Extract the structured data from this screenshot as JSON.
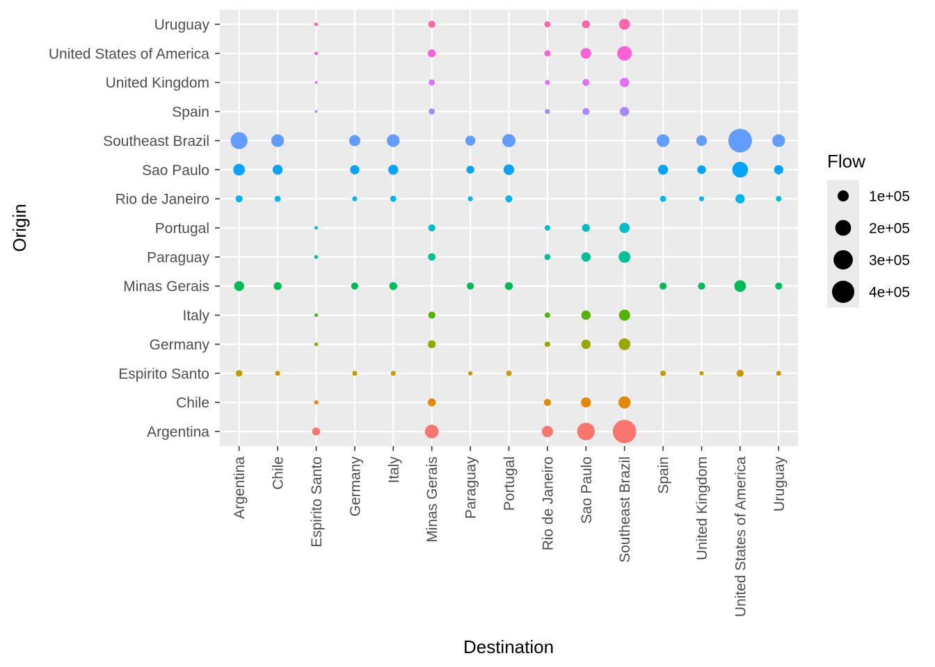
{
  "chart_data": {
    "type": "scatter",
    "xlabel": "Destination",
    "ylabel": "Origin",
    "x_categories": [
      "Argentina",
      "Chile",
      "Espirito Santo",
      "Germany",
      "Italy",
      "Minas Gerais",
      "Paraguay",
      "Portugal",
      "Rio de Janeiro",
      "Sao Paulo",
      "Southeast Brazil",
      "Spain",
      "United Kingdom",
      "United States of America",
      "Uruguay"
    ],
    "y_categories": [
      "Argentina",
      "Chile",
      "Espirito Santo",
      "Germany",
      "Italy",
      "Minas Gerais",
      "Paraguay",
      "Portugal",
      "Rio de Janeiro",
      "Sao Paulo",
      "Southeast Brazil",
      "Spain",
      "United Kingdom",
      "United States of America",
      "Uruguay"
    ],
    "size_legend": {
      "title": "Flow",
      "breaks": [
        100000,
        200000,
        300000,
        400000
      ],
      "labels": [
        "1e+05",
        "2e+05",
        "3e+05",
        "4e+05"
      ],
      "max_flow": 450000
    },
    "grid": true,
    "legend_position": "right",
    "background": "#EBEBEB",
    "origin_colors": {
      "Argentina": "#F8766D",
      "Chile": "#E38900",
      "Espirito Santo": "#C49A00",
      "Germany": "#99A800",
      "Italy": "#53B400",
      "Minas Gerais": "#00BC56",
      "Paraguay": "#00C094",
      "Portugal": "#00BFC4",
      "Rio de Janeiro": "#00B6EB",
      "Sao Paulo": "#06A4FF",
      "Southeast Brazil": "#619CFF",
      "Spain": "#A58AFF",
      "United Kingdom": "#DF70F8",
      "United States of America": "#FB61D7",
      "Uruguay": "#FF66A8"
    },
    "series": [
      {
        "origin": "Uruguay",
        "flows": [
          {
            "destination": "Espirito Santo",
            "flow": 10000
          },
          {
            "destination": "Minas Gerais",
            "flow": 40000
          },
          {
            "destination": "Rio de Janeiro",
            "flow": 30000
          },
          {
            "destination": "Sao Paulo",
            "flow": 50000
          },
          {
            "destination": "Southeast Brazil",
            "flow": 95000
          }
        ]
      },
      {
        "origin": "United States of America",
        "flows": [
          {
            "destination": "Espirito Santo",
            "flow": 10000
          },
          {
            "destination": "Minas Gerais",
            "flow": 50000
          },
          {
            "destination": "Rio de Janeiro",
            "flow": 30000
          },
          {
            "destination": "Sao Paulo",
            "flow": 90000
          },
          {
            "destination": "Southeast Brazil",
            "flow": 170000
          }
        ]
      },
      {
        "origin": "United Kingdom",
        "flows": [
          {
            "destination": "Espirito Santo",
            "flow": 6000
          },
          {
            "destination": "Minas Gerais",
            "flow": 30000
          },
          {
            "destination": "Rio de Janeiro",
            "flow": 20000
          },
          {
            "destination": "Sao Paulo",
            "flow": 40000
          },
          {
            "destination": "Southeast Brazil",
            "flow": 70000
          }
        ]
      },
      {
        "origin": "Spain",
        "flows": [
          {
            "destination": "Espirito Santo",
            "flow": 6000
          },
          {
            "destination": "Minas Gerais",
            "flow": 30000
          },
          {
            "destination": "Rio de Janeiro",
            "flow": 20000
          },
          {
            "destination": "Sao Paulo",
            "flow": 40000
          },
          {
            "destination": "Southeast Brazil",
            "flow": 70000
          }
        ]
      },
      {
        "origin": "Southeast Brazil",
        "flows": [
          {
            "destination": "Argentina",
            "flow": 230000
          },
          {
            "destination": "Chile",
            "flow": 130000
          },
          {
            "destination": "Germany",
            "flow": 100000
          },
          {
            "destination": "Italy",
            "flow": 130000
          },
          {
            "destination": "Paraguay",
            "flow": 80000
          },
          {
            "destination": "Portugal",
            "flow": 140000
          },
          {
            "destination": "Spain",
            "flow": 130000
          },
          {
            "destination": "United Kingdom",
            "flow": 90000
          },
          {
            "destination": "United States of America",
            "flow": 450000
          },
          {
            "destination": "Uruguay",
            "flow": 130000
          }
        ]
      },
      {
        "origin": "Sao Paulo",
        "flows": [
          {
            "destination": "Argentina",
            "flow": 110000
          },
          {
            "destination": "Chile",
            "flow": 80000
          },
          {
            "destination": "Germany",
            "flow": 70000
          },
          {
            "destination": "Italy",
            "flow": 80000
          },
          {
            "destination": "Paraguay",
            "flow": 50000
          },
          {
            "destination": "Portugal",
            "flow": 90000
          },
          {
            "destination": "Spain",
            "flow": 80000
          },
          {
            "destination": "United Kingdom",
            "flow": 60000
          },
          {
            "destination": "United States of America",
            "flow": 200000
          },
          {
            "destination": "Uruguay",
            "flow": 70000
          }
        ]
      },
      {
        "origin": "Rio de Janeiro",
        "flows": [
          {
            "destination": "Argentina",
            "flow": 40000
          },
          {
            "destination": "Chile",
            "flow": 30000
          },
          {
            "destination": "Germany",
            "flow": 20000
          },
          {
            "destination": "Italy",
            "flow": 30000
          },
          {
            "destination": "Paraguay",
            "flow": 20000
          },
          {
            "destination": "Portugal",
            "flow": 40000
          },
          {
            "destination": "Spain",
            "flow": 30000
          },
          {
            "destination": "United Kingdom",
            "flow": 20000
          },
          {
            "destination": "United States of America",
            "flow": 70000
          },
          {
            "destination": "Uruguay",
            "flow": 25000
          }
        ]
      },
      {
        "origin": "Portugal",
        "flows": [
          {
            "destination": "Espirito Santo",
            "flow": 10000
          },
          {
            "destination": "Minas Gerais",
            "flow": 40000
          },
          {
            "destination": "Rio de Janeiro",
            "flow": 25000
          },
          {
            "destination": "Sao Paulo",
            "flow": 50000
          },
          {
            "destination": "Southeast Brazil",
            "flow": 85000
          }
        ]
      },
      {
        "origin": "Paraguay",
        "flows": [
          {
            "destination": "Espirito Santo",
            "flow": 12000
          },
          {
            "destination": "Minas Gerais",
            "flow": 45000
          },
          {
            "destination": "Rio de Janeiro",
            "flow": 30000
          },
          {
            "destination": "Sao Paulo",
            "flow": 70000
          },
          {
            "destination": "Southeast Brazil",
            "flow": 110000
          }
        ]
      },
      {
        "origin": "Minas Gerais",
        "flows": [
          {
            "destination": "Argentina",
            "flow": 80000
          },
          {
            "destination": "Chile",
            "flow": 50000
          },
          {
            "destination": "Germany",
            "flow": 40000
          },
          {
            "destination": "Italy",
            "flow": 50000
          },
          {
            "destination": "Paraguay",
            "flow": 40000
          },
          {
            "destination": "Portugal",
            "flow": 50000
          },
          {
            "destination": "Spain",
            "flow": 40000
          },
          {
            "destination": "United Kingdom",
            "flow": 40000
          },
          {
            "destination": "United States of America",
            "flow": 110000
          },
          {
            "destination": "Uruguay",
            "flow": 40000
          }
        ]
      },
      {
        "origin": "Italy",
        "flows": [
          {
            "destination": "Espirito Santo",
            "flow": 10000
          },
          {
            "destination": "Minas Gerais",
            "flow": 40000
          },
          {
            "destination": "Rio de Janeiro",
            "flow": 25000
          },
          {
            "destination": "Sao Paulo",
            "flow": 70000
          },
          {
            "destination": "Southeast Brazil",
            "flow": 100000
          }
        ]
      },
      {
        "origin": "Germany",
        "flows": [
          {
            "destination": "Espirito Santo",
            "flow": 12000
          },
          {
            "destination": "Minas Gerais",
            "flow": 50000
          },
          {
            "destination": "Rio de Janeiro",
            "flow": 25000
          },
          {
            "destination": "Sao Paulo",
            "flow": 70000
          },
          {
            "destination": "Southeast Brazil",
            "flow": 110000
          }
        ]
      },
      {
        "origin": "Espirito Santo",
        "flows": [
          {
            "destination": "Argentina",
            "flow": 35000
          },
          {
            "destination": "Chile",
            "flow": 20000
          },
          {
            "destination": "Germany",
            "flow": 20000
          },
          {
            "destination": "Italy",
            "flow": 20000
          },
          {
            "destination": "Paraguay",
            "flow": 15000
          },
          {
            "destination": "Portugal",
            "flow": 25000
          },
          {
            "destination": "Spain",
            "flow": 25000
          },
          {
            "destination": "United Kingdom",
            "flow": 15000
          },
          {
            "destination": "United States of America",
            "flow": 40000
          },
          {
            "destination": "Uruguay",
            "flow": 20000
          }
        ]
      },
      {
        "origin": "Chile",
        "flows": [
          {
            "destination": "Espirito Santo",
            "flow": 15000
          },
          {
            "destination": "Minas Gerais",
            "flow": 50000
          },
          {
            "destination": "Rio de Janeiro",
            "flow": 40000
          },
          {
            "destination": "Sao Paulo",
            "flow": 80000
          },
          {
            "destination": "Southeast Brazil",
            "flow": 120000
          }
        ]
      },
      {
        "origin": "Argentina",
        "flows": [
          {
            "destination": "Espirito Santo",
            "flow": 50000
          },
          {
            "destination": "Minas Gerais",
            "flow": 150000
          },
          {
            "destination": "Rio de Janeiro",
            "flow": 100000
          },
          {
            "destination": "Sao Paulo",
            "flow": 250000
          },
          {
            "destination": "Southeast Brazil",
            "flow": 440000
          }
        ]
      }
    ]
  }
}
